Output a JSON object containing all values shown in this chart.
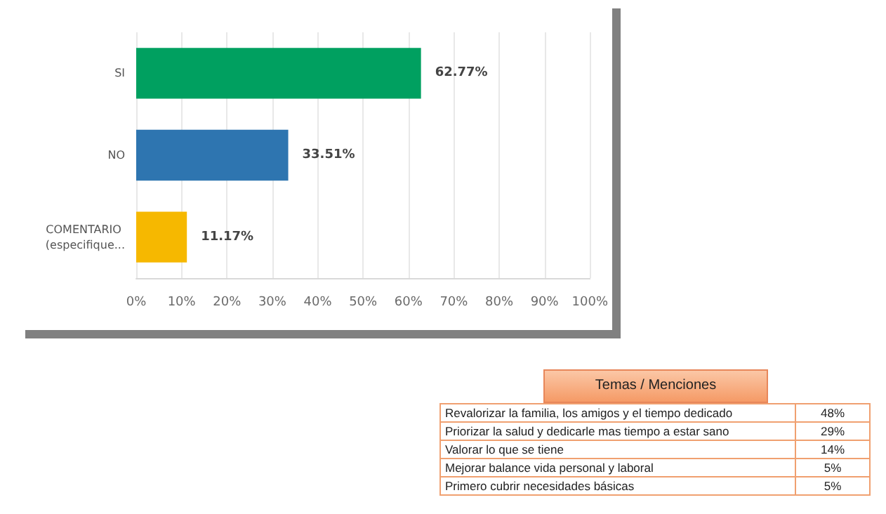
{
  "chart_data": [
    {
      "type": "bar",
      "orientation": "horizontal",
      "categories": [
        "SI",
        "NO",
        "COMENTARIO (especifique..."
      ],
      "values": [
        62.77,
        33.51,
        11.17
      ],
      "colors": [
        "#00a060",
        "#2e75b0",
        "#f6b800"
      ],
      "value_labels": [
        "62.77%",
        "33.51%",
        "11.17%"
      ],
      "xlim": [
        0,
        100
      ],
      "xticks": [
        {
          "value": 0,
          "label": "0%"
        },
        {
          "value": 10,
          "label": "10%"
        },
        {
          "value": 20,
          "label": "20%"
        },
        {
          "value": 30,
          "label": "30%"
        },
        {
          "value": 40,
          "label": "40%"
        },
        {
          "value": 50,
          "label": "50%"
        },
        {
          "value": 60,
          "label": "60%"
        },
        {
          "value": 70,
          "label": "70%"
        },
        {
          "value": 80,
          "label": "80%"
        },
        {
          "value": 90,
          "label": "90%"
        },
        {
          "value": 100,
          "label": "100%"
        }
      ],
      "grid": "x"
    },
    {
      "type": "other",
      "title": "Temas / Menciones",
      "categories": [
        "Revalorizar la familia, los amigos y el tiempo dedicado",
        "Priorizar la salud y dedicarle mas tiempo a estar sano",
        "Valorar lo que se tiene",
        "Mejorar balance vida personal y laboral",
        "Primero cubrir necesidades básicas"
      ],
      "value_labels": [
        "48%",
        "29%",
        "14%",
        "5%",
        "5%"
      ]
    }
  ]
}
